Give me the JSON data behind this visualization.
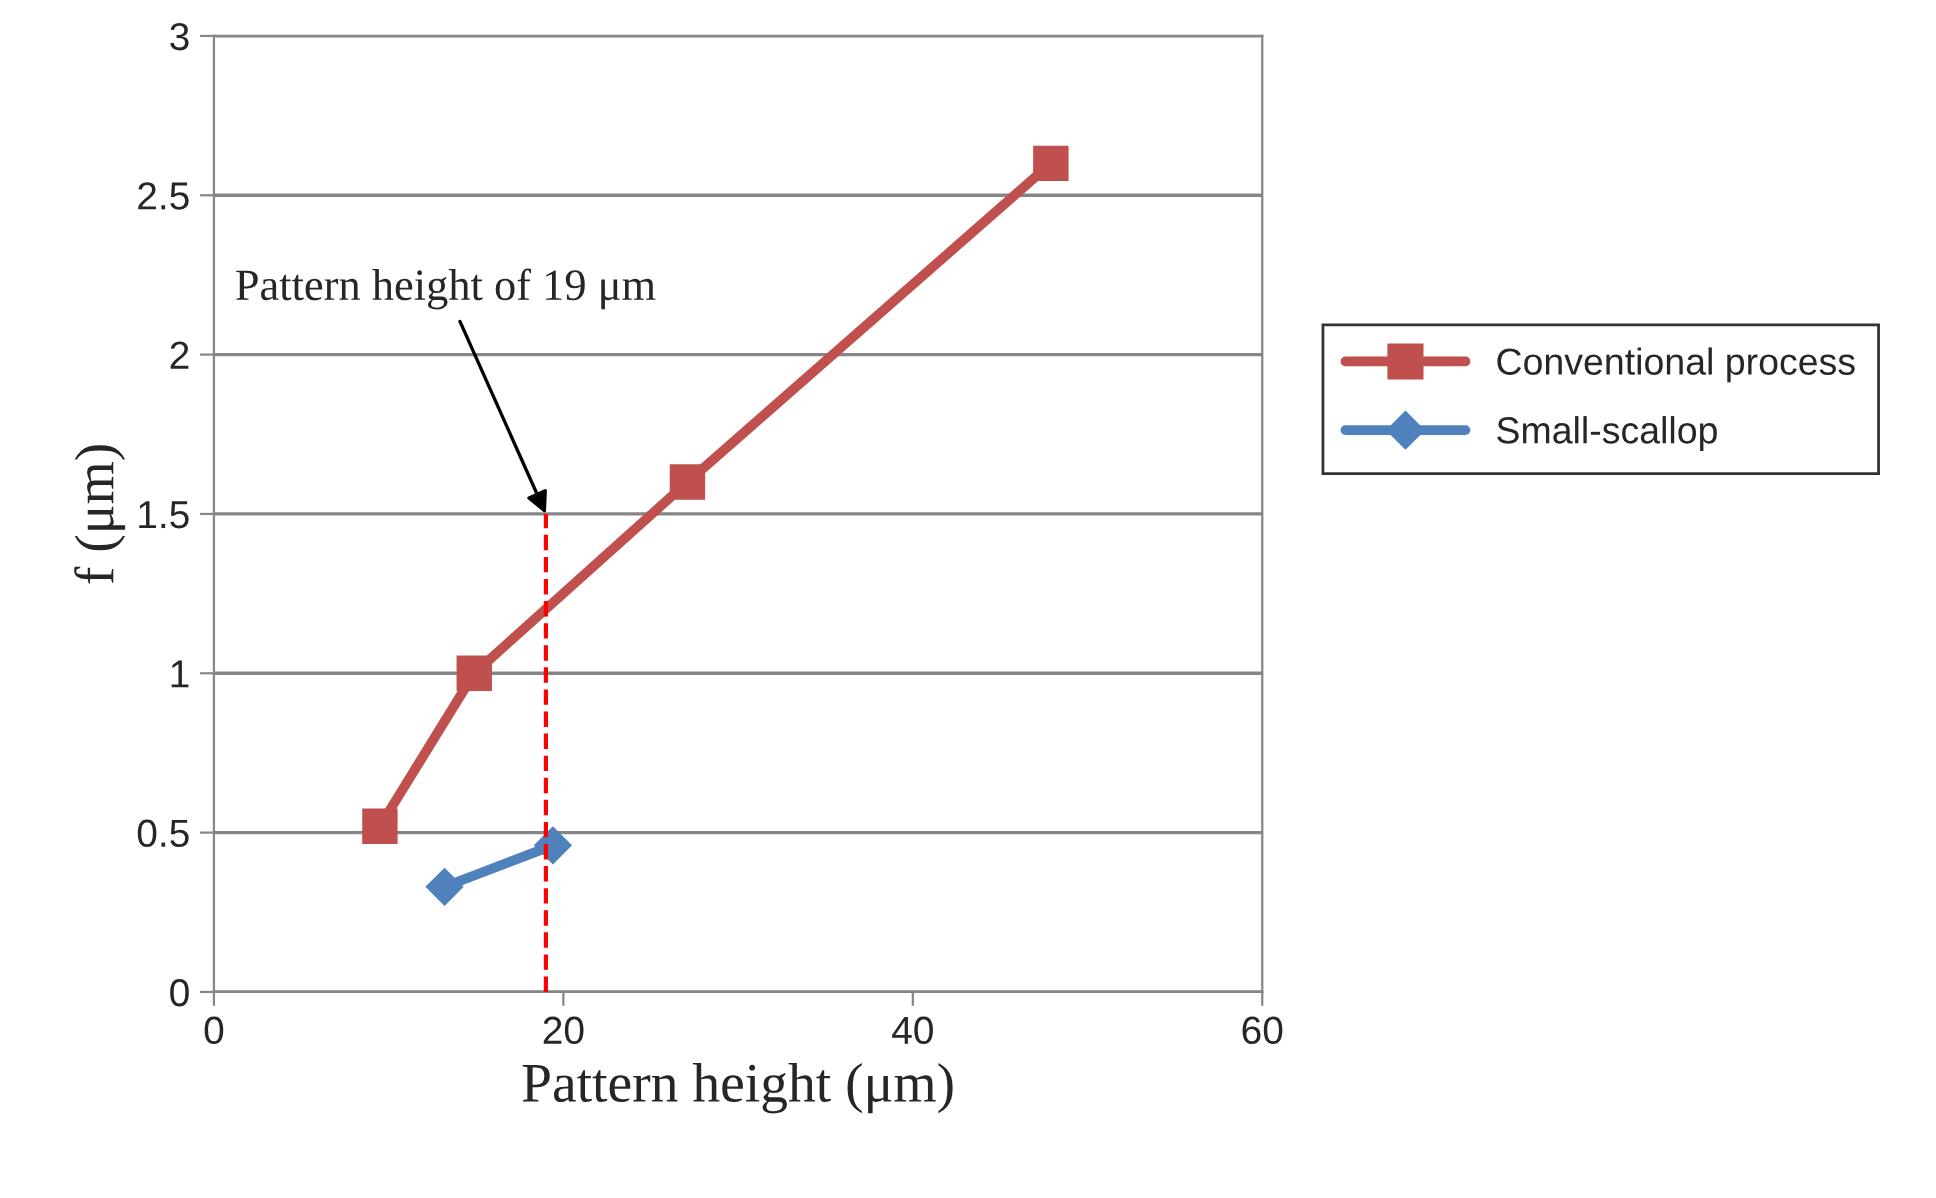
{
  "chart_data": {
    "type": "line",
    "xlabel": "Pattern height (μm)",
    "ylabel": "f (μm)",
    "xlim": [
      0,
      60
    ],
    "xticks": [
      0,
      20,
      40,
      60
    ],
    "ylim": [
      0,
      3
    ],
    "yticks": [
      0,
      0.5,
      1,
      1.5,
      2,
      2.5,
      3
    ],
    "grid": "y",
    "legend": "right",
    "series": [
      {
        "name": "Conventional process",
        "color": "#c0504d",
        "x": [
          9.5,
          14.9,
          27.1,
          47.9
        ],
        "values": [
          0.52,
          1.0,
          1.6,
          2.6
        ],
        "marker": "square",
        "line_style": "solid"
      },
      {
        "name": "Small-scallop",
        "color": "#4f81bd",
        "x": [
          13.2,
          19.4
        ],
        "values": [
          0.33,
          0.46
        ],
        "marker": "diamond",
        "line_style": "solid"
      },
      {
        "color": "#ff0000",
        "x": [
          19,
          19
        ],
        "values": [
          0,
          1.5
        ],
        "marker": "none",
        "line_style": "dashed"
      }
    ],
    "annotations": [
      {
        "text": "Pattern height of 19 μm",
        "x": 19,
        "y": 1.5
      }
    ]
  }
}
